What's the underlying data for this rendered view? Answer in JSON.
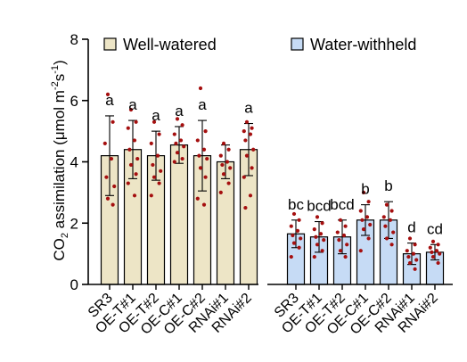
{
  "chart_data": {
    "type": "bar",
    "ylabel_prefix": "CO",
    "ylabel_sub": "2",
    "ylabel_main": " assimilation (μmol m",
    "ylabel_sup1": "-2",
    "ylabel_mid": "s",
    "ylabel_sup2": "-1",
    "ylabel_end": ")",
    "ylim": [
      0,
      8
    ],
    "yticks": [
      "0",
      "2",
      "4",
      "6",
      "8"
    ],
    "legend_position": "top",
    "categories": [
      "SR3",
      "OE-T#1",
      "OE-T#2",
      "OE-C#1",
      "OE-C#2",
      "RNAi#1",
      "RNAi#2"
    ],
    "series": [
      {
        "name": "Well-watered",
        "color": "#ede5c6",
        "values": [
          4.2,
          4.4,
          4.2,
          4.55,
          4.2,
          4.0,
          4.4
        ],
        "errors": [
          1.3,
          0.95,
          0.8,
          0.6,
          1.15,
          0.55,
          0.85
        ],
        "letters": [
          "a",
          "a",
          "a",
          "a",
          "a",
          "",
          "a"
        ],
        "points": [
          [
            6.2,
            5.3,
            4.6,
            4.1,
            3.5,
            3.2,
            2.8,
            2.6
          ],
          [
            5.7,
            5.3,
            5.1,
            4.7,
            4.4,
            4.1,
            3.9,
            3.6,
            3.3,
            2.9
          ],
          [
            5.3,
            4.9,
            4.6,
            4.2,
            3.9,
            3.7,
            3.5,
            3.3,
            2.9
          ],
          [
            5.4,
            5.2,
            4.9,
            4.7,
            4.6,
            4.5,
            4.3,
            4.1,
            4.0
          ],
          [
            6.4,
            5.0,
            4.7,
            4.4,
            4.2,
            4.1,
            3.8,
            3.5,
            2.8,
            2.6
          ],
          [
            4.6,
            4.4,
            4.2,
            4.0,
            3.9,
            3.8,
            3.6,
            3.3,
            3.0
          ],
          [
            5.3,
            5.1,
            5.0,
            4.9,
            4.7,
            4.4,
            4.2,
            3.8,
            3.5,
            2.9,
            2.5
          ]
        ]
      },
      {
        "name": "Water-withheld",
        "color": "#c6dbf5",
        "values": [
          1.65,
          1.55,
          1.55,
          2.1,
          2.1,
          1.0,
          1.05
        ],
        "errors": [
          0.45,
          0.5,
          0.55,
          0.5,
          0.6,
          0.35,
          0.25
        ],
        "letters": [
          "bc",
          "bcd",
          "bcd",
          "b",
          "b",
          "d",
          "cd"
        ],
        "points": [
          [
            2.3,
            2.1,
            1.9,
            1.75,
            1.6,
            1.5,
            1.35,
            1.2,
            0.9
          ],
          [
            2.2,
            2.0,
            1.8,
            1.65,
            1.55,
            1.45,
            1.3,
            1.1,
            0.9
          ],
          [
            2.1,
            1.9,
            1.7,
            1.6,
            1.45,
            1.3,
            1.1,
            0.9
          ],
          [
            3.0,
            2.7,
            2.4,
            2.2,
            2.1,
            1.95,
            1.8,
            1.5,
            1.1
          ],
          [
            2.6,
            2.4,
            2.2,
            2.1,
            1.9,
            1.7,
            1.5,
            1.3
          ],
          [
            1.5,
            1.3,
            1.1,
            1.0,
            0.9,
            0.8,
            0.7,
            0.5
          ],
          [
            1.4,
            1.3,
            1.2,
            1.1,
            1.05,
            1.0,
            0.9,
            0.7
          ]
        ]
      }
    ],
    "colors": {
      "bar_stroke": "#000000",
      "dot": "#a50f0f",
      "axis": "#000000"
    }
  }
}
